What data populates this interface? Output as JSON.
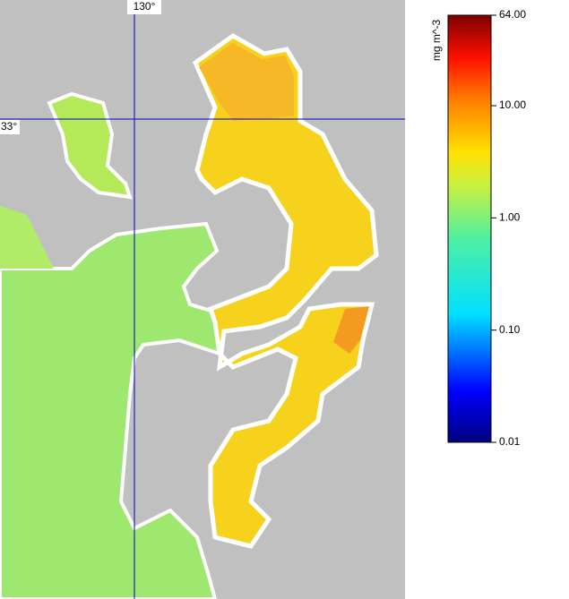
{
  "map": {
    "meridian": {
      "value": 130,
      "label": "130°"
    },
    "parallel": {
      "value": 33,
      "label": "33°"
    }
  },
  "colorbar": {
    "label": "mg m^-3",
    "scale": "log",
    "lim": [
      0.01,
      64
    ],
    "ticks": [
      {
        "value": 64,
        "label": "64.00"
      },
      {
        "value": 10,
        "label": "10.00"
      },
      {
        "value": 1,
        "label": "1.00"
      },
      {
        "value": 0.1,
        "label": "0.10"
      },
      {
        "value": 0.01,
        "label": "0.01"
      }
    ]
  }
}
